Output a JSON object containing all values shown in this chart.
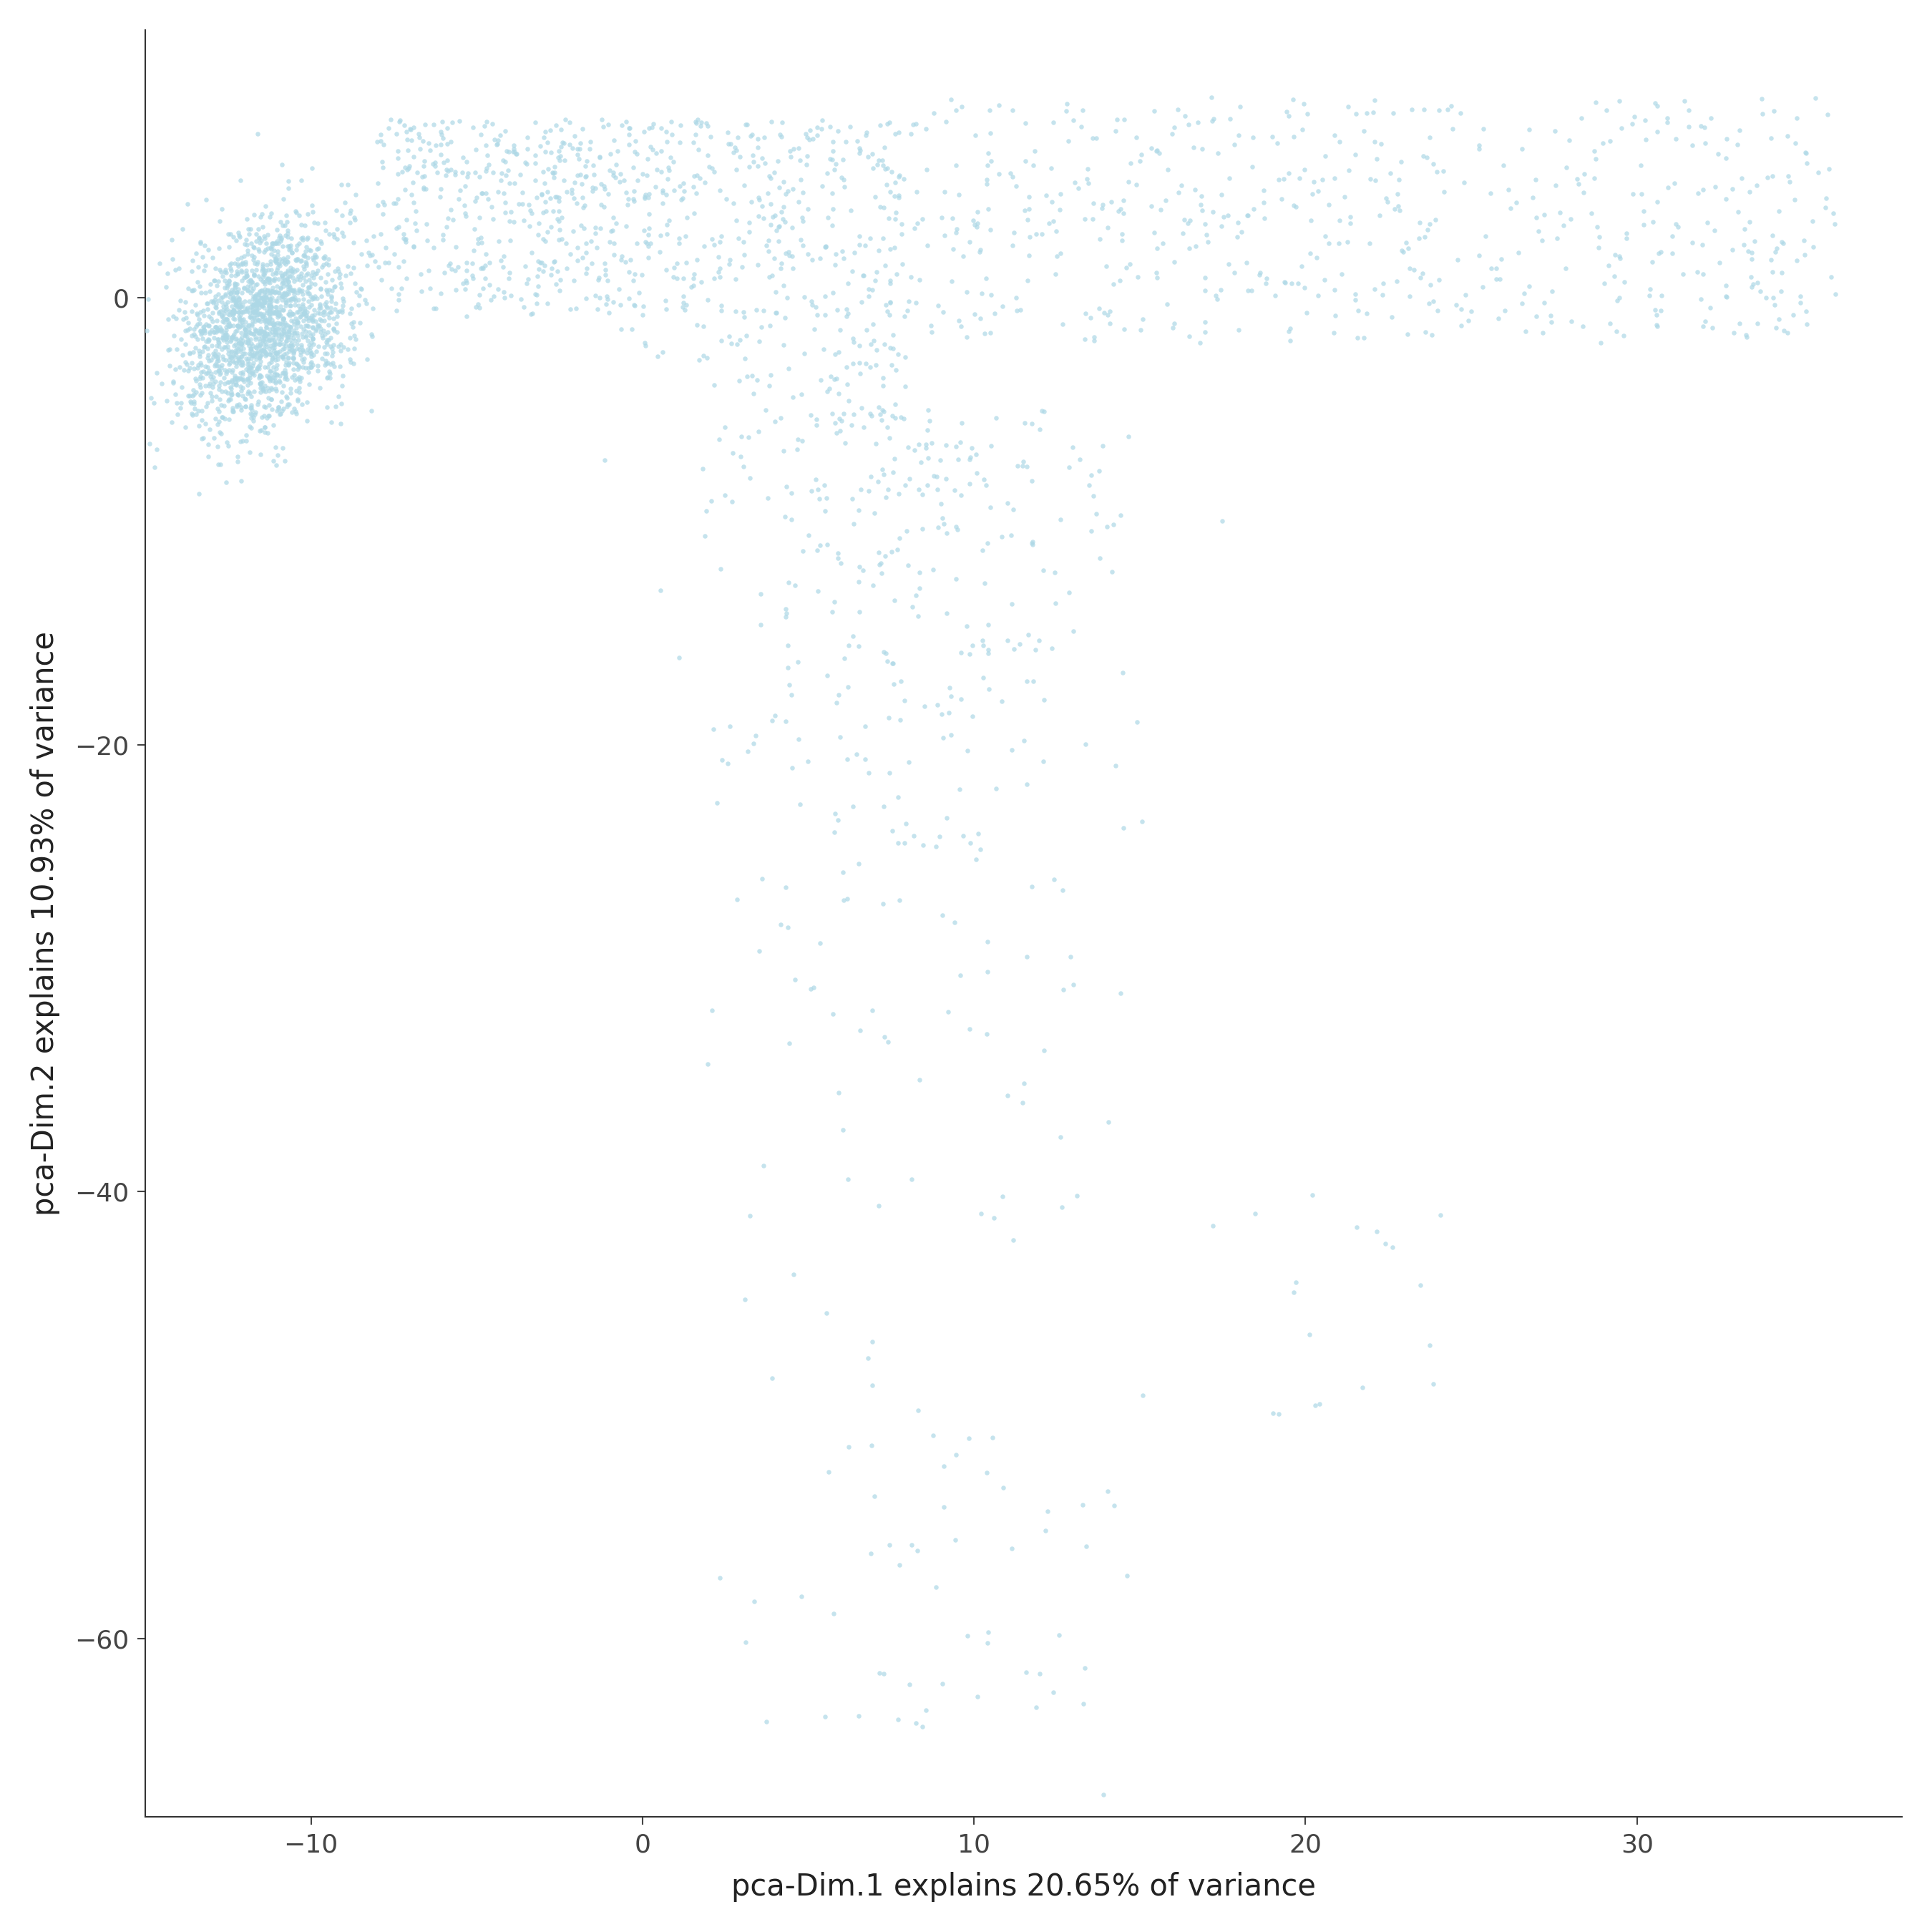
{
  "xlabel": "pca-Dim.1 explains 20.65% of variance",
  "ylabel": "pca-Dim.2 explains 10.93% of variance",
  "xlim": [
    -15,
    38
  ],
  "ylim": [
    -68,
    12
  ],
  "xticks": [
    -10,
    0,
    10,
    20,
    30
  ],
  "yticks": [
    0,
    -20,
    -40,
    -60
  ],
  "dot_color": "#add8e6",
  "dot_alpha": 0.7,
  "dot_size": 22,
  "bg_color": "#ffffff",
  "panel_bg": "#ffffff",
  "axis_color": "#000000",
  "tick_color": "#444444",
  "tick_label_size": 26,
  "axis_label_size": 30,
  "seed": 42
}
